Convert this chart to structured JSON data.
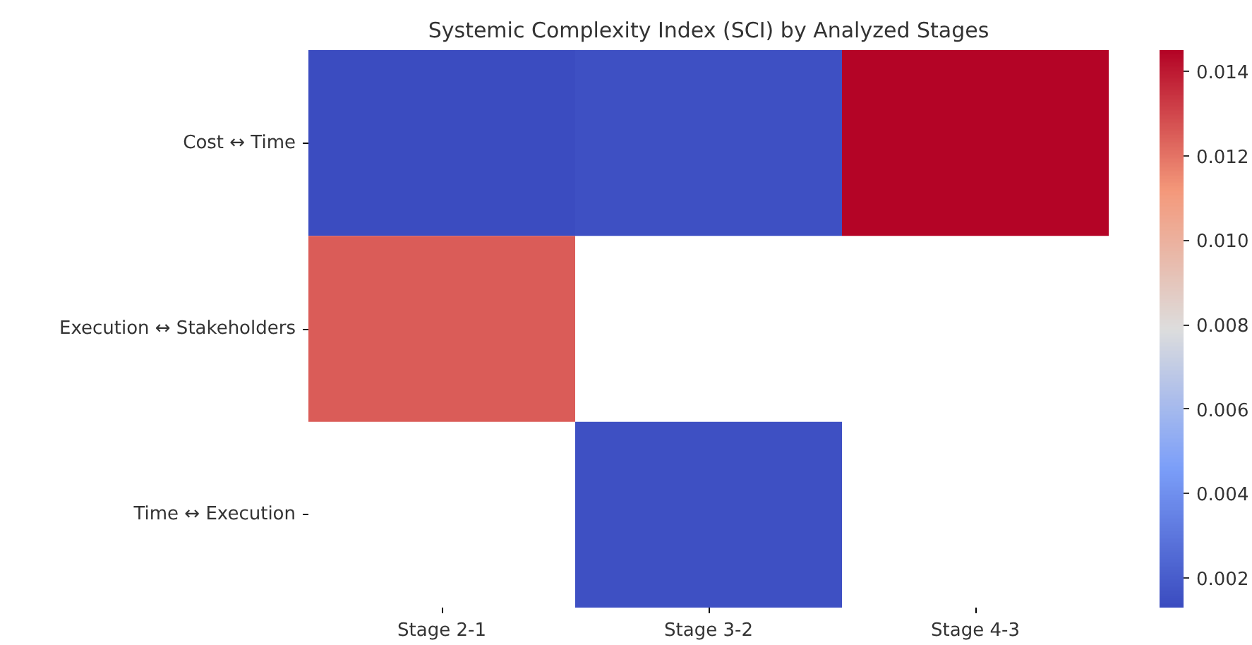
{
  "chart_data": {
    "type": "heatmap",
    "title": "Systemic Complexity Index (SCI) by Analyzed Stages",
    "categories": [
      "Stage 2-1",
      "Stage 3-2",
      "Stage 4-3"
    ],
    "y_categories": [
      "Cost ↔ Time",
      "Execution ↔ Stakeholders",
      "Time ↔ Execution"
    ],
    "cells": [
      [
        0.0013,
        0.0015,
        0.0145
      ],
      [
        0.0125,
        null,
        null
      ],
      [
        null,
        0.0015,
        null
      ]
    ],
    "clim": [
      0.0013,
      0.0145
    ],
    "cticks": [
      0.002,
      0.004,
      0.006,
      0.008,
      {
        "value": 0.01,
        "label": "0.010"
      },
      0.012,
      0.014
    ]
  }
}
